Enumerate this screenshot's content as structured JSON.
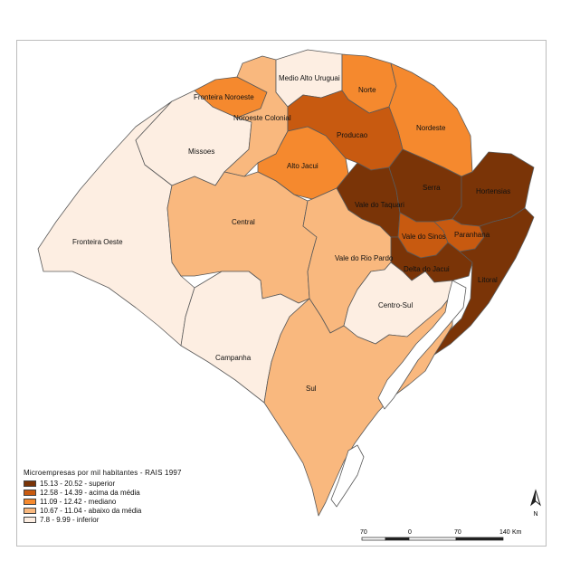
{
  "colors": {
    "superior": "#7a3407",
    "acima": "#c85a10",
    "mediano": "#f5892e",
    "abaixo": "#f9b87e",
    "inferior": "#fdeee2",
    "border": "#5a5a5a",
    "lagoon": "#ffffff"
  },
  "regions": [
    {
      "id": "fronteira-oeste",
      "label": "Fronteira Oeste",
      "class": "inferior"
    },
    {
      "id": "missoes",
      "label": "Missoes",
      "class": "inferior"
    },
    {
      "id": "fronteira-noroeste",
      "label": "Fronteira Noroeste",
      "class": "mediano"
    },
    {
      "id": "noroeste-colonial",
      "label": "Noroeste Colonial",
      "class": "abaixo"
    },
    {
      "id": "medio-alto-uruguai",
      "label": "Medio Alto Uruguai",
      "class": "inferior"
    },
    {
      "id": "norte",
      "label": "Norte",
      "class": "mediano"
    },
    {
      "id": "nordeste",
      "label": "Nordeste",
      "class": "mediano"
    },
    {
      "id": "producao",
      "label": "Producao",
      "class": "acima"
    },
    {
      "id": "alto-jacui",
      "label": "Alto Jacui",
      "class": "mediano"
    },
    {
      "id": "central",
      "label": "Central",
      "class": "abaixo"
    },
    {
      "id": "vale-do-taquari",
      "label": "Vale do Taquari",
      "class": "superior"
    },
    {
      "id": "serra",
      "label": "Serra",
      "class": "superior"
    },
    {
      "id": "hortensias",
      "label": "Hortensias",
      "class": "superior"
    },
    {
      "id": "vale-do-sinos",
      "label": "Vale do Sinos",
      "class": "acima"
    },
    {
      "id": "paranhana",
      "label": "Paranhana",
      "class": "acima"
    },
    {
      "id": "delta-do-jacui",
      "label": "Delta do Jacui",
      "class": "superior"
    },
    {
      "id": "litoral",
      "label": "Litoral",
      "class": "superior"
    },
    {
      "id": "vale-do-rio-pardo",
      "label": "Vale do Rio Pardo",
      "class": "abaixo"
    },
    {
      "id": "centro-sul",
      "label": "Centro-Sul",
      "class": "inferior"
    },
    {
      "id": "campanha",
      "label": "Campanha",
      "class": "inferior"
    },
    {
      "id": "sul",
      "label": "Sul",
      "class": "abaixo"
    }
  ],
  "legend": {
    "title": "Microempresas por mil habitantes - RAIS 1997",
    "items": [
      {
        "range": "15.13 - 20.52",
        "desc": "superior",
        "class": "superior"
      },
      {
        "range": "12.58 - 14.39",
        "desc": "acima da média",
        "class": "acima"
      },
      {
        "range": "11.09 - 12.42",
        "desc": "mediano",
        "class": "mediano"
      },
      {
        "range": "10.67 - 11.04",
        "desc": "abaixo da média",
        "class": "abaixo"
      },
      {
        "range": "7.8 - 9.99",
        "desc": "inferior",
        "class": "inferior"
      }
    ]
  },
  "scale_bar": {
    "ticks": [
      "70",
      "0",
      "70",
      "140"
    ],
    "unit": "Km"
  },
  "north_arrow": {
    "label": "N",
    "icon": "north-arrow-icon"
  }
}
